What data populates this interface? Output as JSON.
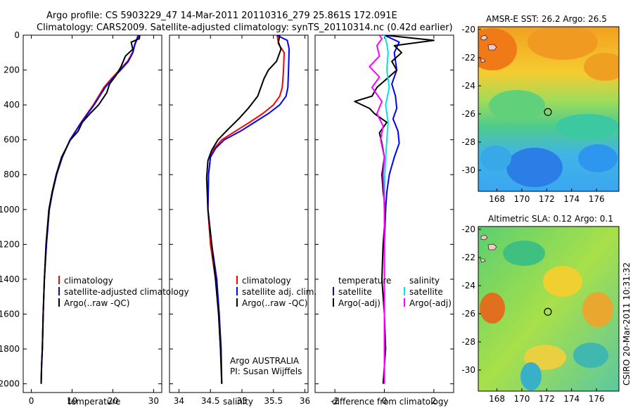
{
  "header": {
    "line1": "Argo profile: CS 5903229_47 14-Mar-2011 20110316_279 25.861S 172.091E",
    "line2": "Climatology: CARS2009. Satellite-adjusted climatology: synTS_20110314.nc (0.42d earlier)"
  },
  "side_label": "CSIRO 20-Mar-2011 10:31:32",
  "colors": {
    "climatology": "#ff0000",
    "satellite": "#0000ff",
    "argo": "#000000",
    "salinity_satellite": "#00e5e5",
    "salinity_argo": "#ff00ff"
  },
  "chart_data": [
    {
      "type": "line",
      "xlabel": "temperature",
      "xticks": [
        0,
        10,
        20,
        30
      ],
      "yticks": [
        0,
        200,
        400,
        600,
        800,
        1000,
        1200,
        1400,
        1600,
        1800,
        2000
      ],
      "xlim": [
        -2,
        32
      ],
      "ylim": [
        2050,
        0
      ],
      "y_inverted": true,
      "legend": [
        "climatology",
        "satellite-adjusted climatology",
        "Argo(..raw -QC)"
      ],
      "series": [
        {
          "name": "climatology",
          "color": "red",
          "x": [
            26.5,
            26,
            25.5,
            24.8,
            23.6,
            21.6,
            19.6,
            17.8,
            15.2,
            12.2,
            9.5,
            7.6,
            6.2,
            5.2,
            4.4,
            3.7,
            3.2,
            2.9,
            2.7,
            2.5,
            2.4
          ],
          "y": [
            0,
            20,
            50,
            100,
            150,
            200,
            250,
            300,
            400,
            500,
            600,
            700,
            800,
            900,
            1000,
            1200,
            1400,
            1600,
            1800,
            1900,
            2000
          ]
        },
        {
          "name": "satellite-adjusted climatology",
          "color": "blue",
          "x": [
            26.2,
            25.9,
            25.4,
            24.9,
            23.8,
            21.9,
            19.9,
            18.1,
            15.4,
            12.3,
            9.5,
            7.6,
            6.2,
            5.2,
            4.4,
            3.7,
            3.2,
            2.9,
            2.7,
            2.5,
            2.4
          ],
          "y": [
            0,
            20,
            50,
            100,
            150,
            200,
            250,
            300,
            400,
            500,
            600,
            700,
            800,
            900,
            1000,
            1200,
            1400,
            1600,
            1800,
            1900,
            2000
          ]
        },
        {
          "name": "Argo(..raw -QC)",
          "color": "black",
          "x": [
            26.6,
            26.5,
            24.5,
            24.9,
            23.1,
            22.0,
            20.8,
            19.2,
            18.5,
            16.5,
            14.4,
            12.5,
            11.5,
            9.6,
            7.4,
            6.1,
            5.1,
            4.3,
            3.6,
            3.2,
            2.9,
            2.7,
            2.5,
            2.4
          ],
          "y": [
            0,
            20,
            40,
            80,
            120,
            180,
            230,
            280,
            330,
            400,
            450,
            500,
            550,
            600,
            700,
            800,
            900,
            1000,
            1200,
            1400,
            1600,
            1800,
            1900,
            2000
          ]
        }
      ]
    },
    {
      "type": "line",
      "xlabel": "salinity",
      "xticks": [
        34,
        34.5,
        35,
        35.5,
        36
      ],
      "yticks": [
        0,
        200,
        400,
        600,
        800,
        1000,
        1200,
        1400,
        1600,
        1800,
        2000
      ],
      "xlim": [
        33.85,
        36.05
      ],
      "ylim": [
        2050,
        0
      ],
      "y_inverted": true,
      "legend": [
        "climatology",
        "satellite adj. clim.",
        "Argo(..raw -QC)"
      ],
      "annotations": [
        "Argo AUSTRALIA",
        "PI: Susan Wijffels"
      ],
      "series": [
        {
          "name": "climatology",
          "color": "red",
          "x": [
            35.56,
            35.58,
            35.67,
            35.66,
            35.64,
            35.6,
            35.5,
            35.33,
            35.12,
            34.9,
            34.68,
            34.56,
            34.5,
            34.47,
            34.46,
            34.5,
            34.58,
            34.63,
            34.66,
            34.68
          ],
          "y": [
            0,
            50,
            100,
            200,
            300,
            350,
            400,
            450,
            500,
            550,
            600,
            650,
            700,
            800,
            1000,
            1200,
            1400,
            1600,
            1800,
            2000
          ]
        },
        {
          "name": "satellite adj. clim.",
          "color": "blue",
          "x": [
            35.55,
            35.72,
            35.75,
            35.74,
            35.73,
            35.7,
            35.6,
            35.42,
            35.2,
            34.98,
            34.72,
            34.58,
            34.5,
            34.47,
            34.46,
            34.52,
            34.6,
            34.64,
            34.67,
            34.68
          ],
          "y": [
            0,
            30,
            80,
            200,
            300,
            350,
            400,
            450,
            500,
            550,
            600,
            650,
            700,
            800,
            1000,
            1200,
            1400,
            1600,
            1800,
            2000
          ]
        },
        {
          "name": "Argo(..raw -QC)",
          "color": "black",
          "x": [
            35.6,
            35.58,
            35.62,
            35.55,
            35.42,
            35.35,
            35.25,
            35.1,
            34.95,
            34.78,
            34.62,
            34.52,
            34.46,
            34.44,
            34.46,
            34.52,
            34.58,
            34.63,
            34.66,
            34.68
          ],
          "y": [
            0,
            40,
            80,
            150,
            200,
            250,
            350,
            420,
            480,
            540,
            600,
            660,
            720,
            820,
            1000,
            1200,
            1400,
            1600,
            1800,
            2000
          ]
        }
      ]
    },
    {
      "type": "line",
      "xlabel": "difference from climatology",
      "xticks": [
        -2,
        0,
        2
      ],
      "yticks": [
        0,
        200,
        400,
        600,
        800,
        1000,
        1200,
        1400,
        1600,
        1800,
        2000
      ],
      "xlim": [
        -2.8,
        2.8
      ],
      "ylim": [
        2050,
        0
      ],
      "y_inverted": true,
      "legend_headers": [
        "temperature",
        "salinity"
      ],
      "legend": [
        "satellite",
        "Argo(-adj)",
        "satellite",
        "Argo(-adj)"
      ],
      "series": [
        {
          "name": "temperature satellite",
          "color": "blue",
          "x": [
            0.0,
            0.6,
            0.4,
            0.5,
            0.3,
            0.45,
            0.5,
            0.35,
            0.55,
            0.6,
            0.4,
            0.2,
            0.1,
            0.05,
            0.0,
            0.0,
            0.0
          ],
          "y": [
            0,
            40,
            100,
            200,
            280,
            350,
            420,
            480,
            550,
            620,
            700,
            800,
            900,
            1000,
            1200,
            1600,
            2000
          ]
        },
        {
          "name": "temperature Argo(-adj)",
          "color": "black",
          "x": [
            0.0,
            2.0,
            0.4,
            0.7,
            0.3,
            0.5,
            0.1,
            -0.3,
            -0.5,
            -1.2,
            -0.6,
            -0.4,
            0.1,
            -0.2,
            -0.1,
            0.0,
            -0.1,
            -0.05,
            0.05,
            -0.05,
            -0.1,
            0.0,
            0.05,
            -0.05
          ],
          "y": [
            0,
            30,
            60,
            100,
            150,
            200,
            250,
            300,
            350,
            380,
            420,
            450,
            500,
            560,
            620,
            700,
            800,
            900,
            1000,
            1200,
            1400,
            1600,
            1800,
            2000
          ]
        },
        {
          "name": "salinity satellite",
          "color": "cyan",
          "x": [
            0.0,
            0.1,
            0.15,
            0.1,
            0.2,
            0.05,
            0.15,
            0.1,
            0.05,
            0.02,
            0.0,
            0.0,
            0.0
          ],
          "y": [
            0,
            50,
            100,
            200,
            300,
            400,
            500,
            600,
            700,
            800,
            1000,
            1500,
            2000
          ]
        },
        {
          "name": "salinity Argo(-adj)",
          "color": "magenta",
          "x": [
            -0.2,
            -0.1,
            -0.3,
            -0.2,
            -0.6,
            -0.2,
            -0.5,
            -0.1,
            -0.3,
            -0.05,
            -0.15,
            0.0,
            -0.05,
            0.0,
            0.0,
            0.0
          ],
          "y": [
            0,
            20,
            60,
            120,
            180,
            240,
            300,
            380,
            450,
            520,
            600,
            700,
            800,
            1000,
            1500,
            2000
          ]
        }
      ]
    },
    {
      "type": "heatmap",
      "title": "AMSR-E SST: 26.2 Argo: 26.5",
      "xticks": [
        168,
        170,
        172,
        174,
        176
      ],
      "yticks": [
        -20,
        -22,
        -24,
        -26,
        -28,
        -30
      ],
      "xlim": [
        166.5,
        177.8
      ],
      "ylim": [
        -31.5,
        -19.8
      ],
      "marker": {
        "lon": 172.091,
        "lat": -25.861
      }
    },
    {
      "type": "heatmap",
      "title": "Altimetric SLA: 0.12 Argo: 0.1",
      "xticks": [
        168,
        170,
        172,
        174,
        176
      ],
      "yticks": [
        -20,
        -22,
        -24,
        -26,
        -28,
        -30
      ],
      "xlim": [
        166.5,
        177.8
      ],
      "ylim": [
        -31.5,
        -19.8
      ],
      "marker": {
        "lon": 172.091,
        "lat": -25.861
      }
    }
  ]
}
